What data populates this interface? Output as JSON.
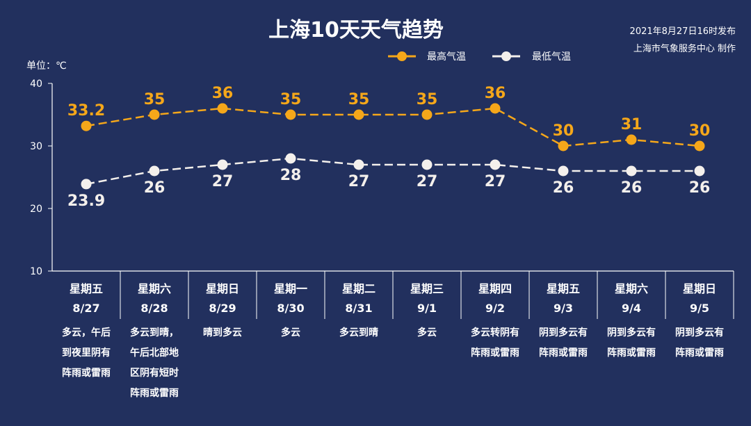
{
  "header": {
    "title": "上海10天天气趋势",
    "publish_time": "2021年8月27日16时发布",
    "publisher": "上海市气象服务中心 制作",
    "unit_label": "单位：℃"
  },
  "colors": {
    "background": "#22305e",
    "high": "#f5a71a",
    "low": "#f4f0ec",
    "axis": "#ffffff"
  },
  "chart_data": {
    "type": "line",
    "title": "上海10天天气趋势",
    "ylabel": "单位：℃",
    "ylim": [
      10,
      40
    ],
    "yticks": [
      10,
      20,
      30,
      40
    ],
    "grid": false,
    "legend_position": "top-right",
    "categories": [
      {
        "day": "星期五",
        "date": "8/27",
        "weather": [
          "多云，午后",
          "到夜里阴有",
          "阵雨或雷雨"
        ]
      },
      {
        "day": "星期六",
        "date": "8/28",
        "weather": [
          "多云到晴，",
          "午后北部地",
          "区阴有短时",
          "阵雨或雷雨"
        ]
      },
      {
        "day": "星期日",
        "date": "8/29",
        "weather": [
          "晴到多云"
        ]
      },
      {
        "day": "星期一",
        "date": "8/30",
        "weather": [
          "多云"
        ]
      },
      {
        "day": "星期二",
        "date": "8/31",
        "weather": [
          "多云到晴"
        ]
      },
      {
        "day": "星期三",
        "date": "9/1",
        "weather": [
          "多云"
        ]
      },
      {
        "day": "星期四",
        "date": "9/2",
        "weather": [
          "多云转阴有",
          "阵雨或雷雨"
        ]
      },
      {
        "day": "星期五",
        "date": "9/3",
        "weather": [
          "阴到多云有",
          "阵雨或雷雨"
        ]
      },
      {
        "day": "星期六",
        "date": "9/4",
        "weather": [
          "阴到多云有",
          "阵雨或雷雨"
        ]
      },
      {
        "day": "星期日",
        "date": "9/5",
        "weather": [
          "阴到多云有",
          "阵雨或雷雨"
        ]
      }
    ],
    "series": [
      {
        "name": "最高气温",
        "key": "high",
        "values": [
          33.2,
          35,
          36,
          35,
          35,
          35,
          36,
          30,
          31,
          30
        ],
        "labels": [
          "33.2",
          "35",
          "36",
          "35",
          "35",
          "35",
          "36",
          "30",
          "31",
          "30"
        ]
      },
      {
        "name": "最低气温",
        "key": "low",
        "values": [
          23.9,
          26,
          27,
          28,
          27,
          27,
          27,
          26,
          26,
          26
        ],
        "labels": [
          "23.9",
          "26",
          "27",
          "28",
          "27",
          "27",
          "27",
          "26",
          "26",
          "26"
        ]
      }
    ]
  }
}
